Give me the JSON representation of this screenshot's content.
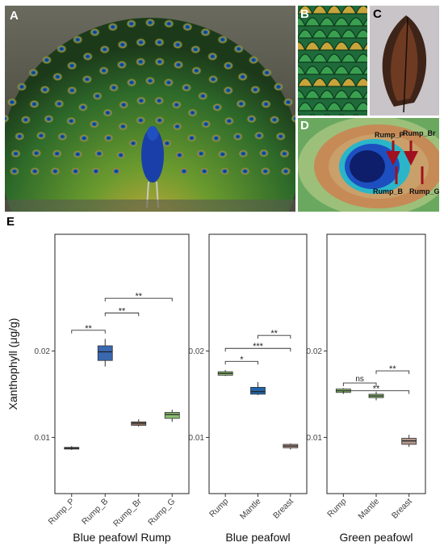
{
  "panels": {
    "a": "A",
    "b": "B",
    "c": "C",
    "d": "D",
    "e": "E"
  },
  "feather_markers": [
    "Rump_P",
    "Rump_Br",
    "Rump_B",
    "Rump_G"
  ],
  "colors": {
    "blue_box": "#3a68b0",
    "dark_blue_box": "#2166ac",
    "brown_box": "#8c6e5c",
    "green_box": "#8cbf70",
    "tan_box": "#b0948a",
    "arrow": "#a01020"
  },
  "chart_data": [
    {
      "type": "boxplot",
      "ylabel": "Xanthophyll (μg/g)",
      "xlabel": "Blue peafowl Rump",
      "ylim": [
        0.0035,
        0.0335
      ],
      "yticks": [
        "0.01",
        "0.02"
      ],
      "categories": [
        "Rump_P",
        "Rump_B",
        "Rump_Br",
        "Rump_G"
      ],
      "boxes": [
        {
          "min": 0.00855,
          "q1": 0.00865,
          "median": 0.00875,
          "q3": 0.00885,
          "max": 0.009,
          "color": "#8c6e5c"
        },
        {
          "min": 0.0182,
          "q1": 0.0189,
          "median": 0.0199,
          "q3": 0.0206,
          "max": 0.0214,
          "color": "#3a68b0"
        },
        {
          "min": 0.01125,
          "q1": 0.0114,
          "median": 0.01165,
          "q3": 0.0118,
          "max": 0.0121,
          "color": "#8c6e5c"
        },
        {
          "min": 0.0118,
          "q1": 0.0122,
          "median": 0.01265,
          "q3": 0.0129,
          "max": 0.0132,
          "color": "#8cbf70"
        }
      ],
      "comparisons": [
        {
          "from": 0,
          "to": 1,
          "y": 0.0224,
          "label": "**"
        },
        {
          "from": 1,
          "to": 2,
          "y": 0.0244,
          "label": "**"
        },
        {
          "from": 1,
          "to": 3,
          "y": 0.0261,
          "label": "**"
        }
      ]
    },
    {
      "type": "boxplot",
      "xlabel": "Blue peafowl",
      "ylim": [
        0.0035,
        0.0335
      ],
      "yticks": [
        "0.01",
        "0.02"
      ],
      "categories": [
        "Rump",
        "Mantle",
        "Breast"
      ],
      "boxes": [
        {
          "min": 0.0171,
          "q1": 0.0172,
          "median": 0.0174,
          "q3": 0.0176,
          "max": 0.0178,
          "color": "#8cbf70"
        },
        {
          "min": 0.0149,
          "q1": 0.015,
          "median": 0.0153,
          "q3": 0.0158,
          "max": 0.0164,
          "color": "#2166ac"
        },
        {
          "min": 0.0086,
          "q1": 0.0088,
          "median": 0.009,
          "q3": 0.0092,
          "max": 0.0093,
          "color": "#b0948a"
        }
      ],
      "comparisons": [
        {
          "from": 0,
          "to": 1,
          "y": 0.0188,
          "label": "*"
        },
        {
          "from": 0,
          "to": 2,
          "y": 0.0203,
          "label": "***"
        },
        {
          "from": 1,
          "to": 2,
          "y": 0.0218,
          "label": "**"
        }
      ]
    },
    {
      "type": "boxplot",
      "xlabel": "Green peafowl",
      "ylim": [
        0.0035,
        0.0335
      ],
      "yticks": [
        "0.01",
        "0.02"
      ],
      "categories": [
        "Rump",
        "Mantle",
        "Breast"
      ],
      "boxes": [
        {
          "min": 0.0151,
          "q1": 0.0152,
          "median": 0.0154,
          "q3": 0.0156,
          "max": 0.0157,
          "color": "#8cbf70"
        },
        {
          "min": 0.0143,
          "q1": 0.0146,
          "median": 0.0148,
          "q3": 0.015,
          "max": 0.0153,
          "color": "#8cbf70"
        },
        {
          "min": 0.0089,
          "q1": 0.0092,
          "median": 0.0096,
          "q3": 0.0099,
          "max": 0.0103,
          "color": "#b0948a"
        }
      ],
      "comparisons": [
        {
          "from": 0,
          "to": 1,
          "y": 0.0163,
          "label": "ns"
        },
        {
          "from": 0,
          "to": 2,
          "y": 0.0154,
          "label": "**"
        },
        {
          "from": 1,
          "to": 2,
          "y": 0.0177,
          "label": "**"
        }
      ]
    }
  ]
}
